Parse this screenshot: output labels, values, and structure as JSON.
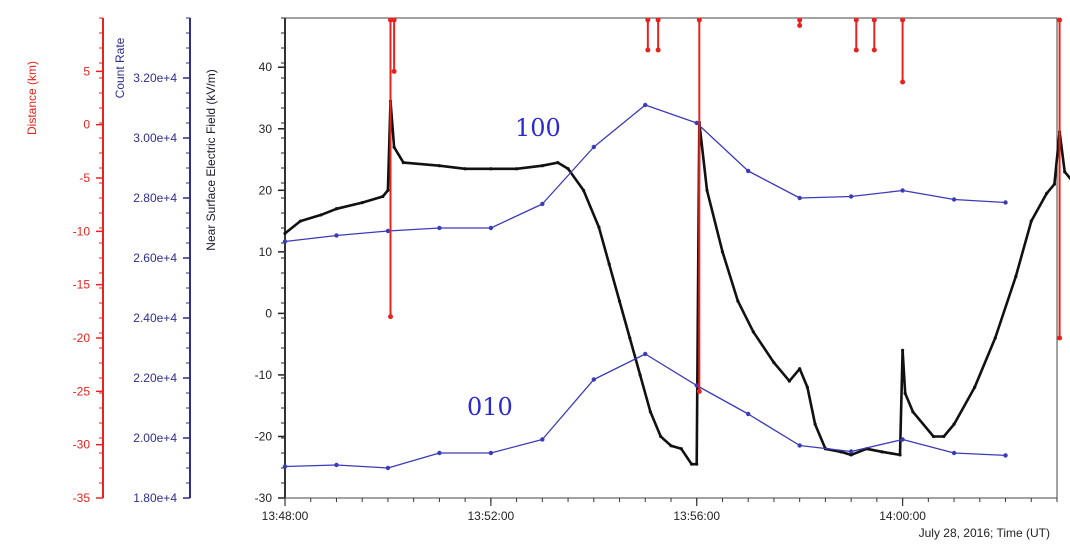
{
  "chart_data": {
    "type": "line",
    "date_label": "July 28, 2016; Time (UT)",
    "x_axis": {
      "ticks": [
        "13:48:00",
        "13:52:00",
        "13:56:00",
        "14:00:00"
      ],
      "tick_minutes": [
        48,
        52,
        56,
        60
      ],
      "range_minutes": [
        48,
        63
      ]
    },
    "axes": {
      "field": {
        "label": "Near Surface Electric Field (kV/m)",
        "ticks": [
          40,
          30,
          20,
          10,
          0,
          -10,
          -20,
          -30
        ],
        "range": [
          -30,
          48
        ],
        "color": "#000000"
      },
      "count": {
        "label": "Count Rate",
        "ticks": [
          "3.20e+4",
          "3.00e+4",
          "2.80e+4",
          "2.60e+4",
          "2.40e+4",
          "2.20e+4",
          "2.00e+4",
          "1.80e+4"
        ],
        "range": [
          18000,
          34000
        ],
        "color": "#2e2e8c"
      },
      "distance": {
        "label": "Distance (km)",
        "ticks": [
          5,
          0,
          -5,
          -10,
          -15,
          -20,
          -25,
          -30,
          -35
        ],
        "range": [
          -35,
          10
        ],
        "color": "#e8231e"
      }
    },
    "annotations": [
      "100",
      "010"
    ],
    "colors": {
      "field": "#111111",
      "count": "#3b3bb8",
      "distance": "#e8231e",
      "annotation": "#2a2ad0"
    },
    "series": [
      {
        "axis": "field",
        "points": [
          [
            48.0,
            13
          ],
          [
            48.3,
            15
          ],
          [
            48.7,
            16
          ],
          [
            49.0,
            17
          ],
          [
            49.5,
            18
          ],
          [
            49.9,
            19
          ],
          [
            50.0,
            20
          ],
          [
            50.05,
            34.5
          ],
          [
            50.12,
            27
          ],
          [
            50.3,
            24.5
          ],
          [
            51.0,
            24
          ],
          [
            51.5,
            23.5
          ],
          [
            52.0,
            23.5
          ],
          [
            52.5,
            23.5
          ],
          [
            53.0,
            24
          ],
          [
            53.3,
            24.5
          ],
          [
            53.5,
            23.5
          ],
          [
            53.8,
            20
          ],
          [
            54.1,
            14
          ],
          [
            54.3,
            8
          ],
          [
            54.5,
            2
          ],
          [
            54.7,
            -4
          ],
          [
            54.9,
            -10
          ],
          [
            55.1,
            -16
          ],
          [
            55.3,
            -20
          ],
          [
            55.5,
            -21.5
          ],
          [
            55.7,
            -22
          ],
          [
            55.9,
            -24.5
          ],
          [
            56.0,
            -24.5
          ],
          [
            56.05,
            31
          ],
          [
            56.2,
            20
          ],
          [
            56.5,
            10
          ],
          [
            56.8,
            2
          ],
          [
            57.1,
            -3
          ],
          [
            57.5,
            -8
          ],
          [
            57.8,
            -11
          ],
          [
            58.0,
            -9
          ],
          [
            58.15,
            -12
          ],
          [
            58.3,
            -18
          ],
          [
            58.5,
            -22
          ],
          [
            58.8,
            -22.5
          ],
          [
            59.0,
            -23
          ],
          [
            59.3,
            -22
          ],
          [
            59.6,
            -22.5
          ],
          [
            59.95,
            -23
          ],
          [
            60.0,
            -6
          ],
          [
            60.05,
            -13
          ],
          [
            60.2,
            -16
          ],
          [
            60.6,
            -20
          ],
          [
            60.8,
            -20
          ],
          [
            61.0,
            -18
          ],
          [
            61.4,
            -12
          ],
          [
            61.8,
            -4
          ],
          [
            62.2,
            6
          ],
          [
            62.5,
            15
          ],
          [
            62.8,
            19.5
          ],
          [
            62.95,
            21
          ],
          [
            63.05,
            29.5
          ],
          [
            63.15,
            23
          ],
          [
            63.35,
            21
          ],
          [
            63.6,
            20
          ],
          [
            63.8,
            19
          ]
        ]
      },
      {
        "name": "100",
        "axis": "count",
        "points": [
          [
            48.0,
            26550
          ],
          [
            49.0,
            26750
          ],
          [
            50.0,
            26900
          ],
          [
            51.0,
            27000
          ],
          [
            52.0,
            27000
          ],
          [
            53.0,
            27800
          ],
          [
            54.0,
            29700
          ],
          [
            55.0,
            31100
          ],
          [
            56.0,
            30500
          ],
          [
            57.0,
            28900
          ],
          [
            58.0,
            28000
          ],
          [
            59.0,
            28050
          ],
          [
            60.0,
            28250
          ],
          [
            61.0,
            27950
          ],
          [
            62.0,
            27850
          ]
        ]
      },
      {
        "name": "010",
        "axis": "count",
        "points": [
          [
            48.0,
            19050
          ],
          [
            49.0,
            19100
          ],
          [
            50.0,
            19000
          ],
          [
            51.0,
            19500
          ],
          [
            52.0,
            19500
          ],
          [
            53.0,
            19950
          ],
          [
            54.0,
            21950
          ],
          [
            55.0,
            22800
          ],
          [
            56.0,
            21750
          ],
          [
            57.0,
            20800
          ],
          [
            58.0,
            19750
          ],
          [
            59.0,
            19550
          ],
          [
            60.0,
            19950
          ],
          [
            61.0,
            19500
          ],
          [
            62.0,
            19420
          ]
        ]
      },
      {
        "axis": "distance",
        "markers": [
          {
            "x": 50.05,
            "top": 0,
            "bottom": 28
          },
          {
            "x": 50.12,
            "top": 0,
            "bottom": 5
          },
          {
            "x": 55.05,
            "top": 0,
            "bottom": 3
          },
          {
            "x": 55.25,
            "top": 0,
            "bottom": 3
          },
          {
            "x": 56.05,
            "top": 0,
            "bottom": 35
          },
          {
            "x": 58.0,
            "top": 0,
            "bottom": 0.7
          },
          {
            "x": 59.1,
            "top": 0,
            "bottom": 3
          },
          {
            "x": 59.45,
            "top": 0,
            "bottom": 3
          },
          {
            "x": 60.0,
            "top": 0,
            "bottom": 6
          },
          {
            "x": 63.05,
            "top": 0,
            "bottom": 30
          }
        ]
      }
    ]
  }
}
